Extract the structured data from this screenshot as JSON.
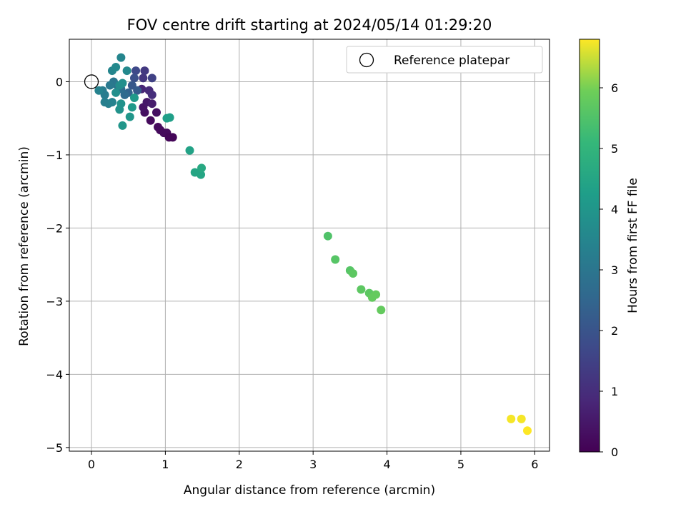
{
  "chart_data": {
    "type": "scatter",
    "title": "FOV centre drift starting at 2024/05/14 01:29:20",
    "xlabel": "Angular distance from reference (arcmin)",
    "ylabel": "Rotation from reference (arcmin)",
    "xlim": [
      -0.3,
      6.2
    ],
    "ylim": [
      -5.05,
      0.58
    ],
    "xticks": [
      0,
      1,
      2,
      3,
      4,
      5,
      6
    ],
    "yticks": [
      0,
      -1,
      -2,
      -3,
      -4,
      -5
    ],
    "grid": true,
    "legend": {
      "placement": "top-right",
      "entries": [
        "Reference platepar"
      ]
    },
    "reference_point": {
      "x": 0,
      "y": 0
    },
    "colorbar": {
      "label": "Hours from first FF file",
      "range": [
        0,
        6.8
      ],
      "ticks": [
        0,
        1,
        2,
        3,
        4,
        5,
        6
      ],
      "colormap": "viridis"
    },
    "points": [
      {
        "x": 0.72,
        "y": -0.42,
        "t": 0.3
      },
      {
        "x": 0.8,
        "y": -0.53,
        "t": 0.2
      },
      {
        "x": 0.9,
        "y": -0.62,
        "t": 0.2
      },
      {
        "x": 0.93,
        "y": -0.66,
        "t": 0.2
      },
      {
        "x": 0.98,
        "y": -0.7,
        "t": 0.2
      },
      {
        "x": 1.02,
        "y": -0.7,
        "t": 0.2
      },
      {
        "x": 1.05,
        "y": -0.76,
        "t": 0.1
      },
      {
        "x": 1.1,
        "y": -0.76,
        "t": 0.1
      },
      {
        "x": 0.88,
        "y": -0.42,
        "t": 0.3
      },
      {
        "x": 0.7,
        "y": -0.35,
        "t": 0.4
      },
      {
        "x": 0.75,
        "y": -0.28,
        "t": 0.5
      },
      {
        "x": 0.82,
        "y": -0.3,
        "t": 0.6
      },
      {
        "x": 0.68,
        "y": -0.1,
        "t": 0.8
      },
      {
        "x": 0.78,
        "y": -0.12,
        "t": 0.9
      },
      {
        "x": 0.82,
        "y": -0.18,
        "t": 1.0
      },
      {
        "x": 0.7,
        "y": 0.05,
        "t": 1.2
      },
      {
        "x": 0.72,
        "y": 0.15,
        "t": 1.3
      },
      {
        "x": 0.82,
        "y": 0.05,
        "t": 1.5
      },
      {
        "x": 0.6,
        "y": 0.15,
        "t": 1.7
      },
      {
        "x": 0.58,
        "y": 0.05,
        "t": 1.9
      },
      {
        "x": 0.55,
        "y": -0.05,
        "t": 2.1
      },
      {
        "x": 0.62,
        "y": -0.12,
        "t": 2.2
      },
      {
        "x": 0.5,
        "y": -0.15,
        "t": 2.4
      },
      {
        "x": 0.45,
        "y": -0.18,
        "t": 2.6
      },
      {
        "x": 0.4,
        "y": -0.1,
        "t": 2.7
      },
      {
        "x": 0.35,
        "y": -0.05,
        "t": 2.9
      },
      {
        "x": 0.3,
        "y": 0.0,
        "t": 3.0
      },
      {
        "x": 0.25,
        "y": -0.05,
        "t": 3.1
      },
      {
        "x": 0.15,
        "y": -0.12,
        "t": 3.2
      },
      {
        "x": 0.18,
        "y": -0.18,
        "t": 3.2
      },
      {
        "x": 0.18,
        "y": -0.28,
        "t": 3.3
      },
      {
        "x": 0.23,
        "y": -0.3,
        "t": 3.3
      },
      {
        "x": 0.28,
        "y": -0.28,
        "t": 3.4
      },
      {
        "x": 0.1,
        "y": -0.12,
        "t": 3.4
      },
      {
        "x": 0.28,
        "y": 0.15,
        "t": 3.5
      },
      {
        "x": 0.4,
        "y": 0.33,
        "t": 3.5
      },
      {
        "x": 0.48,
        "y": 0.15,
        "t": 3.6
      },
      {
        "x": 0.33,
        "y": 0.2,
        "t": 3.6
      },
      {
        "x": 0.38,
        "y": -0.05,
        "t": 3.7
      },
      {
        "x": 0.42,
        "y": -0.02,
        "t": 3.8
      },
      {
        "x": 0.33,
        "y": -0.15,
        "t": 3.8
      },
      {
        "x": 0.4,
        "y": -0.3,
        "t": 3.9
      },
      {
        "x": 0.38,
        "y": -0.38,
        "t": 3.9
      },
      {
        "x": 0.42,
        "y": -0.6,
        "t": 4.0
      },
      {
        "x": 0.52,
        "y": -0.48,
        "t": 4.0
      },
      {
        "x": 0.55,
        "y": -0.35,
        "t": 4.1
      },
      {
        "x": 0.58,
        "y": -0.22,
        "t": 4.1
      },
      {
        "x": 1.02,
        "y": -0.5,
        "t": 4.3
      },
      {
        "x": 1.06,
        "y": -0.49,
        "t": 4.3
      },
      {
        "x": 1.33,
        "y": -0.94,
        "t": 4.4
      },
      {
        "x": 1.4,
        "y": -1.24,
        "t": 4.5
      },
      {
        "x": 1.48,
        "y": -1.27,
        "t": 4.5
      },
      {
        "x": 1.49,
        "y": -1.18,
        "t": 4.6
      },
      {
        "x": 3.2,
        "y": -2.11,
        "t": 5.5
      },
      {
        "x": 3.3,
        "y": -2.43,
        "t": 5.6
      },
      {
        "x": 3.5,
        "y": -2.58,
        "t": 5.6
      },
      {
        "x": 3.54,
        "y": -2.62,
        "t": 5.7
      },
      {
        "x": 3.65,
        "y": -2.84,
        "t": 5.7
      },
      {
        "x": 3.76,
        "y": -2.89,
        "t": 5.7
      },
      {
        "x": 3.8,
        "y": -2.95,
        "t": 5.8
      },
      {
        "x": 3.85,
        "y": -2.91,
        "t": 5.8
      },
      {
        "x": 3.92,
        "y": -3.12,
        "t": 5.8
      },
      {
        "x": 5.68,
        "y": -4.61,
        "t": 6.75
      },
      {
        "x": 5.82,
        "y": -4.61,
        "t": 6.75
      },
      {
        "x": 5.9,
        "y": -4.77,
        "t": 6.8
      }
    ]
  }
}
